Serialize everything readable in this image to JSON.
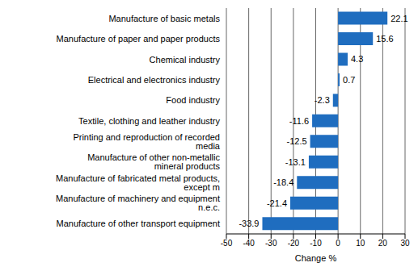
{
  "chart_data": {
    "type": "bar",
    "orientation": "horizontal",
    "x_label": "Change %",
    "categories": [
      "Manufacture of basic metals",
      "Manufacture of paper and paper products",
      "Chemical industry",
      "Electrical and electronics industry",
      "Food industry",
      "Textile, clothing and leather industry",
      "Printing and reproduction of recorded media",
      "Manufacture of other non-metallic mineral products",
      "Manufacture of fabricated metal products, except m",
      "Manufacture of machinery and equipment n.e.c.",
      "Manufacture of other transport equipment"
    ],
    "values": [
      22.1,
      15.6,
      4.3,
      0.7,
      -2.3,
      -11.6,
      -12.5,
      -13.1,
      -18.4,
      -21.4,
      -33.9
    ],
    "color": "#1f6dbf",
    "xlim": [
      -50,
      30
    ],
    "xticks": [
      -50,
      -40,
      -30,
      -20,
      -10,
      0,
      10,
      20,
      30
    ],
    "grid": true,
    "data_labels": true
  }
}
